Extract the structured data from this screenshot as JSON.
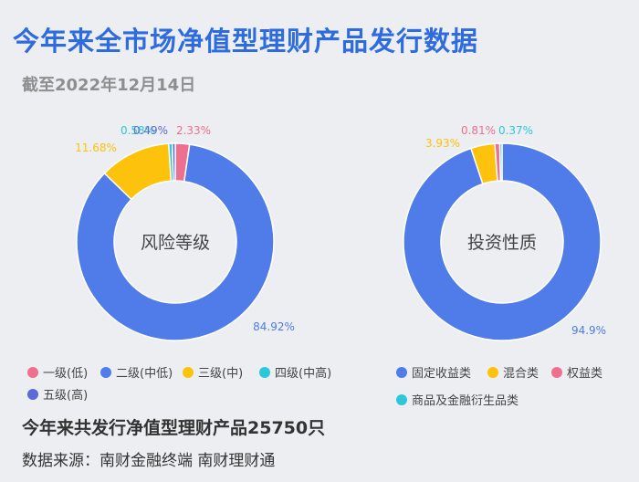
{
  "title": "今年来全市场净值型理财产品发行数据",
  "subtitle": "截至2022年12月14日",
  "chart_data": [
    {
      "type": "pie",
      "center_label": "风险等级",
      "slices": [
        {
          "name": "一级(低)",
          "value": 2.33,
          "label": "2.33%",
          "color": "#ef6f8e"
        },
        {
          "name": "二级(中低)",
          "value": 84.92,
          "label": "84.92%",
          "color": "#4f7ce8"
        },
        {
          "name": "三级(中)",
          "value": 11.68,
          "label": "11.68%",
          "color": "#fdc20c"
        },
        {
          "name": "四级(中高)",
          "value": 0.58,
          "label": "0.58%",
          "color": "#2cc7d9"
        },
        {
          "name": "五级(高)",
          "value": 0.49,
          "label": "0.49%",
          "color": "#5b6ad8"
        }
      ]
    },
    {
      "type": "pie",
      "center_label": "投资性质",
      "slices": [
        {
          "name": "固定收益类",
          "value": 94.9,
          "label": "94.9%",
          "color": "#4f7ce8"
        },
        {
          "name": "混合类",
          "value": 3.93,
          "label": "3.93%",
          "color": "#fdc20c"
        },
        {
          "name": "权益类",
          "value": 0.81,
          "label": "0.81%",
          "color": "#ef6f8e"
        },
        {
          "name": "商品及金融衍生品类",
          "value": 0.37,
          "label": "0.37%",
          "color": "#2cc7d9"
        }
      ]
    }
  ],
  "footer": {
    "total": "今年来共发行净值型理财产品25750只",
    "source": "数据来源：南财金融终端 南财理财通"
  }
}
